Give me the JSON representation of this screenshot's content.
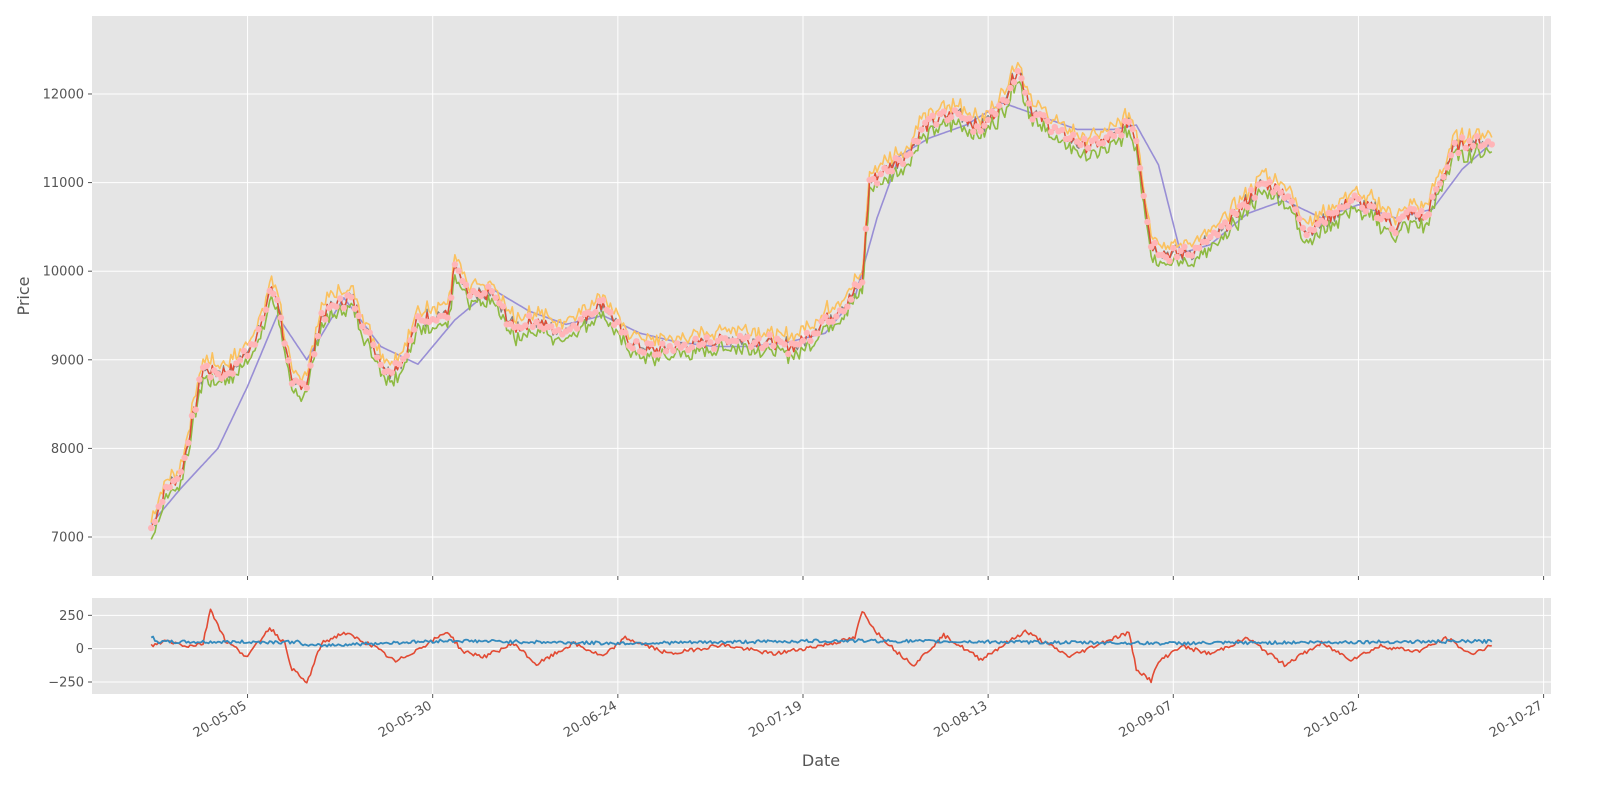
{
  "chart_data": [
    {
      "type": "line",
      "panel": "price",
      "title": "",
      "xlabel": "",
      "ylabel": "Price",
      "ylim": [
        6560,
        12880
      ],
      "xlim": [
        "2020-04-14",
        "2020-10-28"
      ],
      "x_tick_dates": [
        "2020-05-05",
        "2020-05-30",
        "2020-06-24",
        "2020-07-19",
        "2020-08-13",
        "2020-09-07",
        "2020-10-02",
        "2020-10-27"
      ],
      "y_ticks": [
        7000,
        8000,
        9000,
        10000,
        11000,
        12000
      ],
      "y_tick_labels": [
        "7000",
        "8000",
        "9000",
        "10000",
        "11000",
        "12000"
      ],
      "grid": true,
      "style": "ggplot",
      "colors": {
        "close": "#e24a33",
        "high": "#fbc15e",
        "low": "#8eba42",
        "sma": "#988ed5",
        "open": "#777777",
        "markers": "#ffb5b8"
      },
      "series": [
        {
          "role": "close",
          "x": [
            "2020-04-22",
            "2020-04-24",
            "2020-04-26",
            "2020-04-29",
            "2020-05-01",
            "2020-05-03",
            "2020-05-05",
            "2020-05-07",
            "2020-05-08",
            "2020-05-09",
            "2020-05-11",
            "2020-05-13",
            "2020-05-15",
            "2020-05-17",
            "2020-05-19",
            "2020-05-22",
            "2020-05-24",
            "2020-05-26",
            "2020-05-28",
            "2020-05-30",
            "2020-06-01",
            "2020-06-02",
            "2020-06-04",
            "2020-06-07",
            "2020-06-10",
            "2020-06-13",
            "2020-06-16",
            "2020-06-19",
            "2020-06-22",
            "2020-06-25",
            "2020-06-28",
            "2020-07-02",
            "2020-07-06",
            "2020-07-10",
            "2020-07-14",
            "2020-07-18",
            "2020-07-22",
            "2020-07-25",
            "2020-07-27",
            "2020-07-28",
            "2020-07-30",
            "2020-08-02",
            "2020-08-04",
            "2020-08-06",
            "2020-08-09",
            "2020-08-12",
            "2020-08-15",
            "2020-08-17",
            "2020-08-19",
            "2020-08-22",
            "2020-08-26",
            "2020-08-30",
            "2020-09-01",
            "2020-09-02",
            "2020-09-04",
            "2020-09-06",
            "2020-09-09",
            "2020-09-13",
            "2020-09-16",
            "2020-09-19",
            "2020-09-22",
            "2020-09-25",
            "2020-09-28",
            "2020-10-01",
            "2020-10-04",
            "2020-10-07",
            "2020-10-09",
            "2020-10-11",
            "2020-10-15",
            "2020-10-18",
            "2020-10-20"
          ],
          "values": [
            7100,
            7550,
            7700,
            8900,
            8850,
            8900,
            9100,
            9400,
            9800,
            9700,
            8700,
            8750,
            9500,
            9650,
            9700,
            9150,
            8850,
            9000,
            9450,
            9500,
            9500,
            10050,
            9700,
            9750,
            9350,
            9450,
            9300,
            9450,
            9650,
            9250,
            9100,
            9150,
            9200,
            9250,
            9200,
            9150,
            9450,
            9650,
            9900,
            11000,
            11150,
            11300,
            11600,
            11700,
            11800,
            11600,
            11900,
            12300,
            11800,
            11600,
            11400,
            11500,
            11700,
            11500,
            10300,
            10200,
            10200,
            10400,
            10700,
            11000,
            10900,
            10450,
            10600,
            10800,
            10700,
            10500,
            10650,
            10600,
            11400,
            11450,
            11450
          ]
        },
        {
          "role": "sma",
          "x": [
            "2020-04-22",
            "2020-04-26",
            "2020-05-01",
            "2020-05-05",
            "2020-05-09",
            "2020-05-13",
            "2020-05-18",
            "2020-05-23",
            "2020-05-28",
            "2020-06-02",
            "2020-06-07",
            "2020-06-12",
            "2020-06-17",
            "2020-06-22",
            "2020-06-27",
            "2020-07-02",
            "2020-07-07",
            "2020-07-12",
            "2020-07-17",
            "2020-07-22",
            "2020-07-26",
            "2020-07-29",
            "2020-08-01",
            "2020-08-05",
            "2020-08-10",
            "2020-08-15",
            "2020-08-20",
            "2020-08-25",
            "2020-08-30",
            "2020-09-02",
            "2020-09-05",
            "2020-09-08",
            "2020-09-12",
            "2020-09-17",
            "2020-09-22",
            "2020-09-27",
            "2020-10-02",
            "2020-10-07",
            "2020-10-12",
            "2020-10-16",
            "2020-10-20"
          ],
          "values": [
            7150,
            7550,
            8000,
            8700,
            9500,
            9000,
            9700,
            9150,
            8950,
            9450,
            9800,
            9550,
            9400,
            9500,
            9300,
            9200,
            9150,
            9150,
            9200,
            9300,
            9700,
            10600,
            11300,
            11500,
            11650,
            11900,
            11750,
            11600,
            11600,
            11650,
            11200,
            10200,
            10300,
            10650,
            10800,
            10600,
            10750,
            10600,
            10700,
            11150,
            11450
          ]
        }
      ]
    },
    {
      "type": "line",
      "panel": "indicator",
      "title": "",
      "xlabel": "Date",
      "ylabel": "",
      "ylim": [
        -340,
        380
      ],
      "y_ticks": [
        -250,
        0,
        250
      ],
      "y_tick_labels": [
        "−250",
        "0",
        "250"
      ],
      "grid": true,
      "colors": {
        "oscillator": "#e24a33",
        "volatility": "#348abd"
      },
      "series": [
        {
          "role": "oscillator",
          "x": [
            "2020-04-22",
            "2020-04-24",
            "2020-04-27",
            "2020-04-29",
            "2020-04-30",
            "2020-05-02",
            "2020-05-05",
            "2020-05-08",
            "2020-05-10",
            "2020-05-11",
            "2020-05-13",
            "2020-05-15",
            "2020-05-18",
            "2020-05-22",
            "2020-05-25",
            "2020-05-30",
            "2020-06-01",
            "2020-06-03",
            "2020-06-06",
            "2020-06-10",
            "2020-06-13",
            "2020-06-18",
            "2020-06-22",
            "2020-06-25",
            "2020-07-01",
            "2020-07-08",
            "2020-07-15",
            "2020-07-22",
            "2020-07-26",
            "2020-07-27",
            "2020-07-29",
            "2020-08-01",
            "2020-08-03",
            "2020-08-07",
            "2020-08-12",
            "2020-08-18",
            "2020-08-24",
            "2020-08-29",
            "2020-09-01",
            "2020-09-02",
            "2020-09-04",
            "2020-09-05",
            "2020-09-08",
            "2020-09-12",
            "2020-09-17",
            "2020-09-22",
            "2020-09-27",
            "2020-10-01",
            "2020-10-05",
            "2020-10-10",
            "2020-10-14",
            "2020-10-17",
            "2020-10-20"
          ],
          "values": [
            20,
            60,
            20,
            40,
            300,
            60,
            -60,
            160,
            40,
            -150,
            -260,
            40,
            120,
            20,
            -100,
            60,
            130,
            -20,
            -60,
            40,
            -120,
            40,
            -60,
            80,
            -40,
            30,
            -40,
            30,
            80,
            280,
            120,
            -40,
            -120,
            100,
            -80,
            130,
            -60,
            60,
            120,
            -150,
            -240,
            -100,
            20,
            -40,
            80,
            -120,
            40,
            -80,
            20,
            -20,
            80,
            -40,
            20
          ]
        },
        {
          "role": "volatility",
          "x": [
            "2020-04-22",
            "2020-04-23",
            "2020-05-01",
            "2020-05-12",
            "2020-05-13",
            "2020-06-01",
            "2020-06-24",
            "2020-07-25",
            "2020-08-15",
            "2020-09-07",
            "2020-10-02",
            "2020-10-20"
          ],
          "values": [
            90,
            50,
            50,
            50,
            20,
            60,
            40,
            60,
            50,
            40,
            50,
            55
          ]
        }
      ]
    }
  ],
  "x_tick_labels": [
    "20-05-05",
    "20-05-30",
    "20-06-24",
    "20-07-19",
    "20-08-13",
    "20-09-07",
    "20-10-02",
    "20-10-27"
  ]
}
